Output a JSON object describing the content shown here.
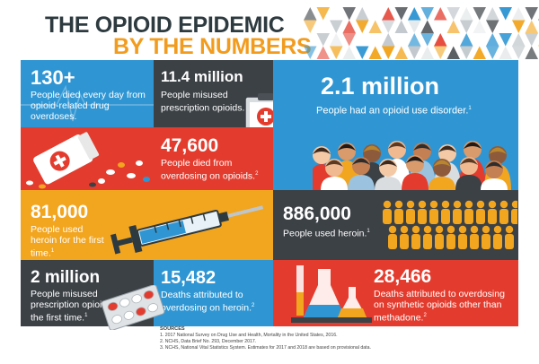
{
  "title": {
    "line1": "THE OPIOID EPIDEMIC",
    "line2": "BY THE NUMBERS"
  },
  "colors": {
    "blue": "#2f96d3",
    "dark": "#3c4146",
    "red": "#e33c2e",
    "orange": "#f2a51f",
    "title_dark": "#2d3a3f",
    "title_orange": "#f29c1f"
  },
  "stats": {
    "died_daily": {
      "number": "130+",
      "text": "People died every day from opioid-related drug overdoses.",
      "footnote": ""
    },
    "misused": {
      "number": "11.4 million",
      "text": "People misused prescription opioids.",
      "footnote": "1"
    },
    "disorder": {
      "number": "2.1 million",
      "text": "People had an opioid use disorder.",
      "footnote": "1"
    },
    "died_overdosing": {
      "number": "47,600",
      "text": "People died from overdosing on opioids.",
      "footnote": "2"
    },
    "heroin_first": {
      "number": "81,000",
      "text": "People used heroin for the first time.",
      "footnote": "1"
    },
    "heroin_used": {
      "number": "886,000",
      "text": "People used heroin.",
      "footnote": "1"
    },
    "misused_first": {
      "number": "2 million",
      "text": "People misused prescription opioids for the first time.",
      "footnote": "1"
    },
    "heroin_deaths": {
      "number": "15,482",
      "text": "Deaths attributed to overdosing on heroin.",
      "footnote": "2"
    },
    "synthetic_deaths": {
      "number": "28,466",
      "text": "Deaths attributed to overdosing on synthetic opioids other than methadone.",
      "footnote": "2"
    }
  },
  "sources": {
    "heading": "SOURCES",
    "items": [
      "1. 2017 National Survey on Drug Use and Health, Mortality in the United States, 2016.",
      "2. NCHS, Data Brief No. 293, December 2017.",
      "3. NCHS, National Vital Statistics System. Estimates for 2017 and 2018 are based on provisional data."
    ]
  },
  "icons": [
    "triangle-banner",
    "pill-bottle-icon",
    "clipboard-icon",
    "crowd-icon",
    "syringe-icon",
    "people-silhouettes-icon",
    "pill-pack-icon",
    "flask-icon"
  ]
}
